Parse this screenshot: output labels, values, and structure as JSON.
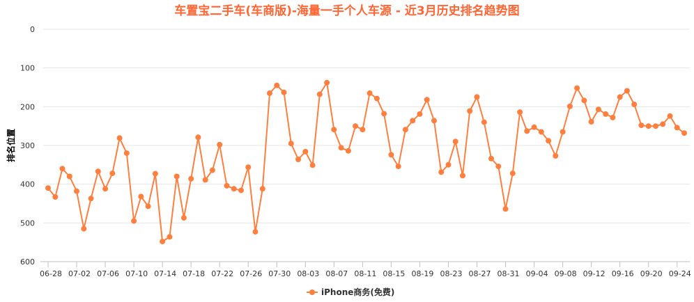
{
  "chart_data": {
    "type": "line",
    "title": "车置宝二手车(车商版)-海量一手个人车源 - 近3月历史排名趋势图",
    "ylabel": "排名位置",
    "xlabel": "",
    "y_reversed": true,
    "ylim": [
      0,
      600
    ],
    "y_ticks": [
      0,
      100,
      200,
      300,
      400,
      500,
      600
    ],
    "grid": true,
    "legend_position": "bottom-center",
    "x_tick_labels": [
      "06-28",
      "07-02",
      "07-06",
      "07-10",
      "07-14",
      "07-18",
      "07-22",
      "07-26",
      "07-30",
      "08-03",
      "08-07",
      "08-11",
      "08-15",
      "08-19",
      "08-23",
      "08-27",
      "08-31",
      "09-04",
      "09-08",
      "09-12",
      "09-16",
      "09-20",
      "09-24"
    ],
    "x_tick_every": 4,
    "colors": {
      "series": "#ff7f3f",
      "title": "#ff6633",
      "grid": "#e6e6e6",
      "axis": "#c0c0c0"
    },
    "series": [
      {
        "name": "iPhone商务(免费)",
        "start_label": "06-28",
        "values": [
          410,
          433,
          360,
          380,
          418,
          515,
          437,
          367,
          412,
          372,
          281,
          320,
          495,
          432,
          457,
          373,
          548,
          536,
          380,
          487,
          386,
          279,
          389,
          364,
          298,
          404,
          412,
          416,
          356,
          523,
          412,
          165,
          145,
          163,
          295,
          336,
          316,
          351,
          168,
          138,
          259,
          306,
          314,
          250,
          259,
          165,
          179,
          218,
          324,
          354,
          259,
          236,
          219,
          182,
          236,
          369,
          350,
          290,
          378,
          211,
          175,
          240,
          334,
          354,
          464,
          372,
          214,
          263,
          253,
          265,
          288,
          327,
          265,
          199,
          152,
          184,
          239,
          207,
          219,
          228,
          175,
          159,
          194,
          248,
          250,
          250,
          245,
          224,
          254,
          268
        ]
      }
    ]
  }
}
